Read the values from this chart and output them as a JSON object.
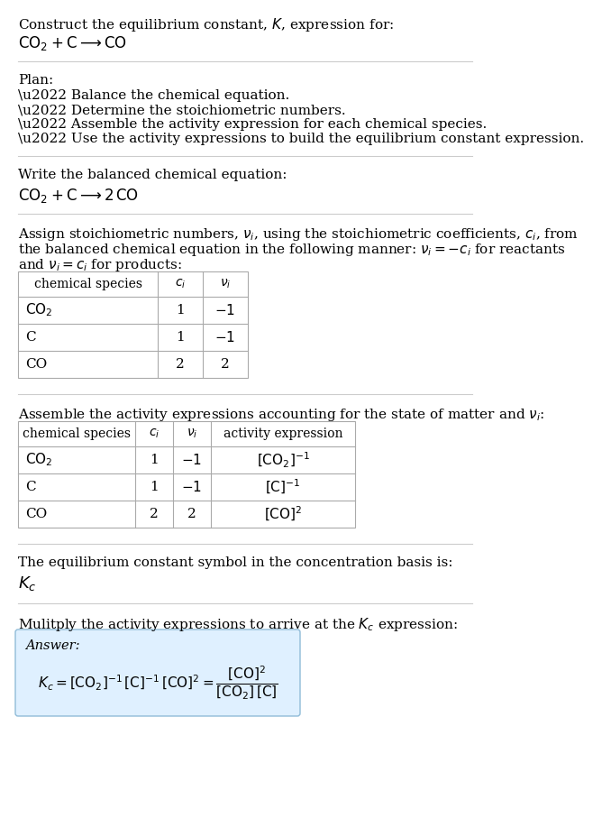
{
  "title_line1": "Construct the equilibrium constant, $K$, expression for:",
  "title_line2": "$\\mathrm{CO_2 + C \\longrightarrow CO}$",
  "plan_header": "Plan:",
  "plan_items": [
    "\\u2022 Balance the chemical equation.",
    "\\u2022 Determine the stoichiometric numbers.",
    "\\u2022 Assemble the activity expression for each chemical species.",
    "\\u2022 Use the activity expressions to build the equilibrium constant expression."
  ],
  "balanced_header": "Write the balanced chemical equation:",
  "balanced_eq": "$\\mathrm{CO_2 + C \\longrightarrow 2\\,CO}$",
  "stoich_text1": "Assign stoichiometric numbers, $\\nu_i$, using the stoichiometric coefficients, $c_i$, from",
  "stoich_text2": "the balanced chemical equation in the following manner: $\\nu_i = -c_i$ for reactants",
  "stoich_text3": "and $\\nu_i = c_i$ for products:",
  "table1_cols": [
    "chemical species",
    "$c_i$",
    "$\\nu_i$"
  ],
  "table1_rows": [
    [
      "$\\mathrm{CO_2}$",
      "1",
      "$-1$"
    ],
    [
      "C",
      "1",
      "$-1$"
    ],
    [
      "CO",
      "2",
      "2"
    ]
  ],
  "activity_header": "Assemble the activity expressions accounting for the state of matter and $\\nu_i$:",
  "table2_cols": [
    "chemical species",
    "$c_i$",
    "$\\nu_i$",
    "activity expression"
  ],
  "table2_rows": [
    [
      "$\\mathrm{CO_2}$",
      "1",
      "$-1$",
      "$[\\mathrm{CO_2}]^{-1}$"
    ],
    [
      "C",
      "1",
      "$-1$",
      "$[\\mathrm{C}]^{-1}$"
    ],
    [
      "CO",
      "2",
      "2",
      "$[\\mathrm{CO}]^{2}$"
    ]
  ],
  "kc_header": "The equilibrium constant symbol in the concentration basis is:",
  "kc_symbol": "$K_c$",
  "multiply_header": "Mulitply the activity expressions to arrive at the $K_c$ expression:",
  "answer_label": "Answer:",
  "answer_box_color": "#dff0ff",
  "answer_box_border": "#90bcd8",
  "bg_color": "#ffffff",
  "text_color": "#000000",
  "table_border_color": "#aaaaaa",
  "separator_color": "#cccccc",
  "font_size": 11.0,
  "small_font_size": 10.0
}
